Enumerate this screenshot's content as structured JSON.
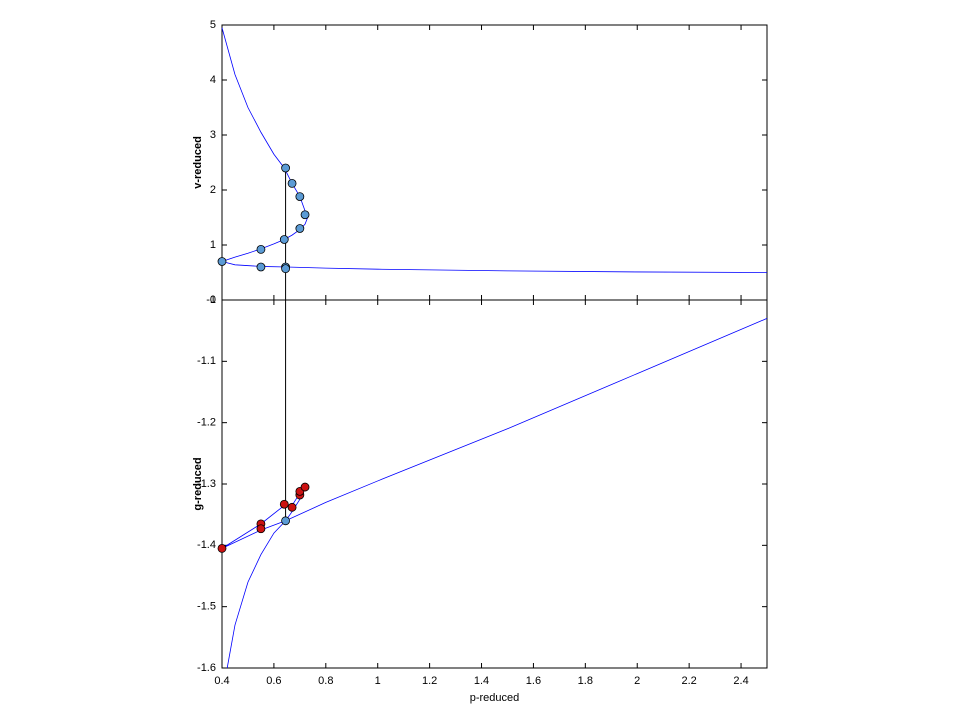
{
  "chart_data": [
    {
      "type": "line",
      "ylabel": "v-reduced",
      "ylim": [
        0,
        5
      ],
      "yticks": [
        0,
        1,
        2,
        3,
        4,
        5
      ],
      "series": [
        {
          "color": "#0000ff",
          "style": "line",
          "x": [
            0.4,
            0.45,
            0.5,
            0.55,
            0.6,
            0.64,
            0.67,
            0.7,
            0.72,
            0.73,
            0.72,
            0.7,
            0.67,
            0.64,
            0.6,
            0.55,
            0.5,
            0.45,
            0.4,
            0.45,
            0.55,
            0.65,
            0.8,
            1,
            1.5,
            2,
            2.5
          ],
          "values": [
            4.95,
            4.1,
            3.5,
            3.05,
            2.65,
            2.4,
            2.12,
            1.88,
            1.62,
            1.5,
            1.38,
            1.28,
            1.18,
            1.1,
            1.02,
            0.93,
            0.85,
            0.78,
            0.7,
            0.64,
            0.61,
            0.6,
            0.58,
            0.56,
            0.53,
            0.51,
            0.5
          ]
        },
        {
          "color": "#5b9bd5",
          "style": "marker",
          "x": [
            0.645,
            0.67,
            0.7,
            0.72,
            0.7,
            0.64,
            0.55,
            0.4,
            0.55,
            0.645,
            0.645
          ],
          "values": [
            2.4,
            2.12,
            1.88,
            1.55,
            1.3,
            1.1,
            0.92,
            0.7,
            0.6,
            0.6,
            0.57
          ]
        }
      ]
    },
    {
      "type": "line",
      "xlabel": "p-reduced",
      "ylabel": "g-reduced",
      "xlim": [
        0.4,
        2.5
      ],
      "xticks": [
        0.4,
        0.6,
        0.8,
        1,
        1.2,
        1.4,
        1.6,
        1.8,
        2,
        2.2,
        2.4
      ],
      "ylim": [
        -1.6,
        -1
      ],
      "yticks": [
        -1.6,
        -1.5,
        -1.4,
        -1.3,
        -1.2,
        -1.1,
        -1
      ],
      "series": [
        {
          "color": "#0000ff",
          "style": "line",
          "x": [
            0.4,
            0.55,
            0.645,
            0.8,
            1,
            1.5,
            2,
            2.5
          ],
          "values": [
            -1.405,
            -1.375,
            -1.36,
            -1.33,
            -1.295,
            -1.21,
            -1.12,
            -1.03
          ]
        },
        {
          "color": "#0000ff",
          "style": "line",
          "x": [
            0.42,
            0.45,
            0.5,
            0.55,
            0.6,
            0.645,
            0.67,
            0.7,
            0.72,
            0.7,
            0.67,
            0.64,
            0.55,
            0.4
          ],
          "values": [
            -1.6,
            -1.53,
            -1.46,
            -1.415,
            -1.38,
            -1.36,
            -1.345,
            -1.325,
            -1.305,
            -1.315,
            -1.335,
            -1.335,
            -1.365,
            -1.405
          ]
        },
        {
          "color": "#cc1111",
          "style": "marker",
          "x": [
            0.4,
            0.55,
            0.55,
            0.64,
            0.67,
            0.7,
            0.7,
            0.72
          ],
          "values": [
            -1.405,
            -1.365,
            -1.373,
            -1.333,
            -1.338,
            -1.318,
            -1.312,
            -1.305
          ]
        },
        {
          "color": "#5b9bd5",
          "style": "marker",
          "x": [
            0.645
          ],
          "values": [
            -1.36
          ]
        }
      ]
    }
  ]
}
